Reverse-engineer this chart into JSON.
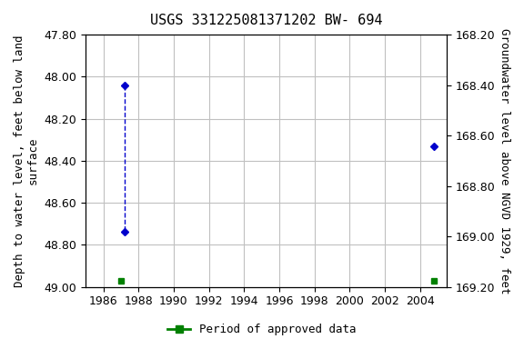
{
  "title": "USGS 331225081371202 BW- 694",
  "ylabel_left": "Depth to water level, feet below land\nsurface",
  "ylabel_right": "Groundwater level above NGVD 1929, feet",
  "xlim": [
    1985,
    2005.5
  ],
  "ylim_left": [
    47.8,
    49.0
  ],
  "ylim_right": [
    168.2,
    169.2
  ],
  "xticks": [
    1986,
    1988,
    1990,
    1992,
    1994,
    1996,
    1998,
    2000,
    2002,
    2004
  ],
  "yticks_left": [
    47.8,
    48.0,
    48.2,
    48.4,
    48.6,
    48.8,
    49.0
  ],
  "yticks_right": [
    168.2,
    168.4,
    168.6,
    168.8,
    169.0,
    169.2
  ],
  "blue_points_x": [
    1987.2,
    1987.2
  ],
  "blue_points_y": [
    48.04,
    48.74
  ],
  "blue_point2_x": 2004.8,
  "blue_point2_y": 48.33,
  "green_points_x": [
    1987.0,
    2004.8
  ],
  "green_points_y": [
    48.97,
    48.97
  ],
  "dashed_line_x": [
    1987.2,
    1987.2
  ],
  "dashed_line_y": [
    48.04,
    48.74
  ],
  "grid_color": "#c0c0c0",
  "blue_color": "#0000cc",
  "green_color": "#008000",
  "bg_color": "#ffffff",
  "title_fontsize": 11,
  "label_fontsize": 9,
  "tick_fontsize": 9,
  "legend_label": "Period of approved data"
}
